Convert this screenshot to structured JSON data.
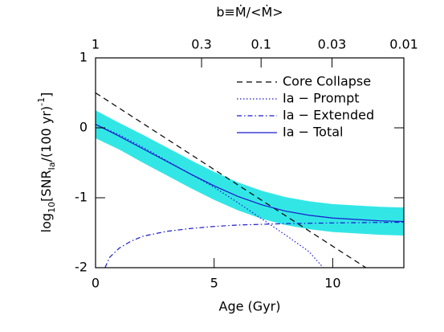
{
  "chart_data": {
    "type": "line",
    "xlabel": "Age (Gyr)",
    "ylabel_parts": [
      "log",
      "10",
      "[SNR",
      "Ia",
      "/(100 yr)",
      "-1",
      "]"
    ],
    "x2label": "b≡Ṁ/<Ṁ>",
    "xlim": [
      0,
      13
    ],
    "ylim": [
      -2,
      1
    ],
    "xticks": [
      0,
      5,
      10
    ],
    "yticks": [
      -2,
      -1,
      0,
      1
    ],
    "x2ticks": [
      {
        "value": 0,
        "label": "1"
      },
      {
        "value": 4.47,
        "label": "0.3"
      },
      {
        "value": 6.98,
        "label": "0.1"
      },
      {
        "value": 9.97,
        "label": "0.03"
      },
      {
        "value": 13,
        "label": "0.01"
      }
    ],
    "band": {
      "color": "#33e6e6",
      "x": [
        0,
        1,
        2,
        3,
        4,
        5,
        6,
        7,
        8,
        9,
        10,
        11,
        12,
        13
      ],
      "upper": [
        0.25,
        0.07,
        -0.1,
        -0.28,
        -0.46,
        -0.63,
        -0.78,
        -0.9,
        -0.99,
        -1.05,
        -1.09,
        -1.11,
        -1.13,
        -1.14
      ],
      "lower": [
        -0.15,
        -0.31,
        -0.5,
        -0.68,
        -0.86,
        -1.03,
        -1.18,
        -1.3,
        -1.39,
        -1.45,
        -1.49,
        -1.51,
        -1.53,
        -1.54
      ]
    },
    "legend": "upper right",
    "series": [
      {
        "name": "Core Collapse",
        "color": "#000000",
        "dash": "dashed",
        "x": [
          0,
          11.4
        ],
        "values": [
          0.5,
          -2
        ]
      },
      {
        "name": "Ia − Prompt",
        "color": "#1a1acc",
        "dash": "dotted",
        "x": [
          0,
          1,
          2,
          3,
          4,
          5,
          6,
          7,
          8,
          9,
          9.6
        ],
        "values": [
          0.05,
          -0.1,
          -0.28,
          -0.47,
          -0.66,
          -0.85,
          -1.07,
          -1.3,
          -1.53,
          -1.77,
          -2
        ]
      },
      {
        "name": "Ia − Extended",
        "color": "#1a1acc",
        "dash": "dashdot",
        "x": [
          0.4,
          0.6,
          1,
          1.5,
          2,
          3,
          4,
          5,
          6,
          7,
          8,
          10,
          13
        ],
        "values": [
          -2,
          -1.85,
          -1.72,
          -1.62,
          -1.55,
          -1.48,
          -1.44,
          -1.41,
          -1.39,
          -1.38,
          -1.37,
          -1.36,
          -1.35
        ]
      },
      {
        "name": "Ia − Total",
        "color": "#1a1acc",
        "dash": "solid",
        "x": [
          0,
          1,
          2,
          3,
          4,
          5,
          6,
          7,
          8,
          9,
          10,
          11,
          12,
          13
        ],
        "values": [
          0.05,
          -0.12,
          -0.3,
          -0.48,
          -0.66,
          -0.83,
          -0.98,
          -1.1,
          -1.19,
          -1.25,
          -1.29,
          -1.31,
          -1.33,
          -1.34
        ]
      }
    ]
  }
}
